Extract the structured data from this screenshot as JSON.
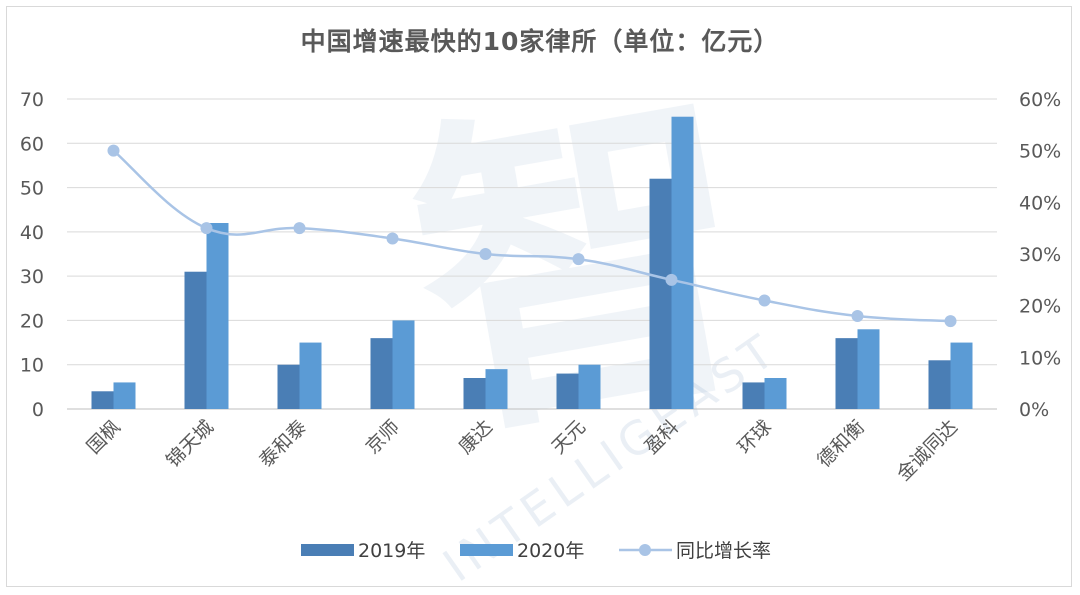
{
  "chart_data": {
    "type": "bar",
    "title": "中国增速最快的10家律所（单位：亿元）",
    "categories": [
      "国枫",
      "锦天城",
      "泰和泰",
      "京师",
      "康达",
      "天元",
      "盈科",
      "环球",
      "德和衡",
      "金诚同达"
    ],
    "series": [
      {
        "name": "2019年",
        "type": "bar",
        "axis": "left",
        "color": "#4a7eb5",
        "values": [
          4,
          31,
          10,
          16,
          7,
          8,
          52,
          6,
          16,
          11
        ]
      },
      {
        "name": "2020年",
        "type": "bar",
        "axis": "left",
        "color": "#5b9bd5",
        "values": [
          6,
          42,
          15,
          20,
          9,
          10,
          66,
          7,
          18,
          15
        ]
      },
      {
        "name": "同比增长率",
        "type": "line",
        "axis": "right",
        "color": "#a9c4e6",
        "smooth": true,
        "values": [
          0.5,
          0.35,
          0.35,
          0.33,
          0.3,
          0.29,
          0.25,
          0.21,
          0.18,
          0.17
        ]
      }
    ],
    "y_left": {
      "min": 0,
      "max": 70,
      "ticks": [
        "0",
        "10",
        "20",
        "30",
        "40",
        "50",
        "60",
        "70"
      ]
    },
    "y_right": {
      "min": 0,
      "max": 0.6,
      "ticks": [
        "0%",
        "10%",
        "20%",
        "30%",
        "40%",
        "50%",
        "60%"
      ]
    },
    "grid": true,
    "legend_position": "bottom"
  },
  "watermark": {
    "text": "INTELLIGEAST"
  }
}
